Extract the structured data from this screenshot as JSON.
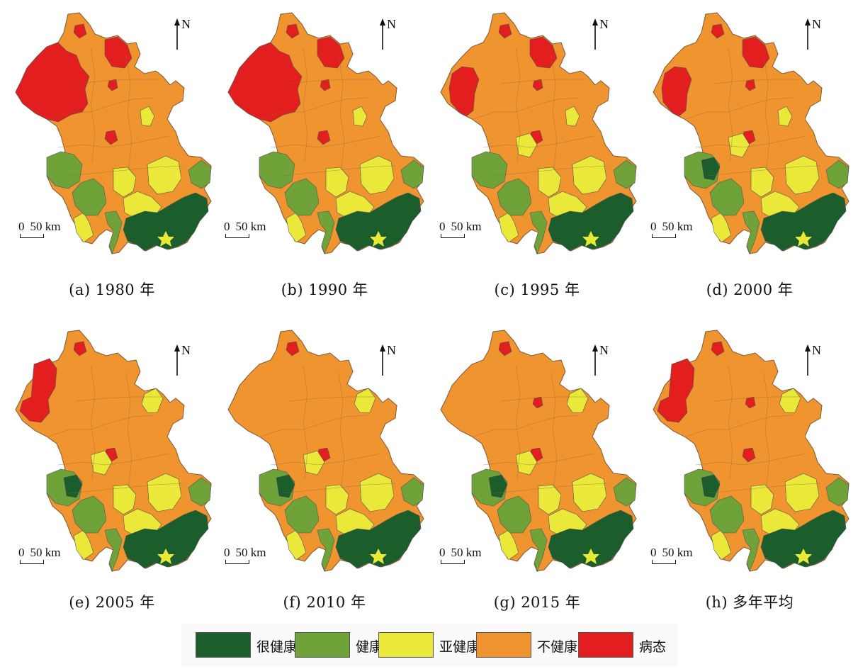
{
  "north_label": "N",
  "scale": {
    "zero": "0",
    "distance": "50 km"
  },
  "panels": [
    {
      "caption": "(a) 1980 年",
      "scheme": "p1980"
    },
    {
      "caption": "(b) 1990 年",
      "scheme": "p1990"
    },
    {
      "caption": "(c) 1995 年",
      "scheme": "p1995"
    },
    {
      "caption": "(d) 2000 年",
      "scheme": "p2000"
    },
    {
      "caption": "(e) 2005 年",
      "scheme": "p2005"
    },
    {
      "caption": "(f) 2010 年",
      "scheme": "p2010"
    },
    {
      "caption": "(g) 2015 年",
      "scheme": "p2015"
    },
    {
      "caption": "(h) 多年平均",
      "scheme": "pavg"
    }
  ],
  "legend": [
    {
      "label": "很健康",
      "color": "#1b5e2b"
    },
    {
      "label": "健康",
      "color": "#6fa33a"
    },
    {
      "label": "亚健康",
      "color": "#eae839"
    },
    {
      "label": "不健康",
      "color": "#f0942f"
    },
    {
      "label": "病态",
      "color": "#e21e1e"
    }
  ]
}
